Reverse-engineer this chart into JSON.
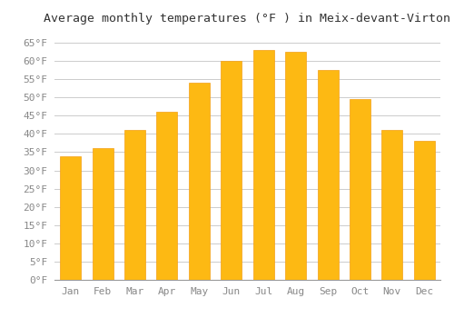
{
  "title": "Average monthly temperatures (°F ) in Meix-devant-Virton",
  "months": [
    "Jan",
    "Feb",
    "Mar",
    "Apr",
    "May",
    "Jun",
    "Jul",
    "Aug",
    "Sep",
    "Oct",
    "Nov",
    "Dec"
  ],
  "values": [
    34,
    36,
    41,
    46,
    54,
    60,
    63,
    62.5,
    57.5,
    49.5,
    41,
    38
  ],
  "bar_color_face": "#FDB913",
  "bar_color_edge": "#F4A016",
  "background_color": "#FFFFFF",
  "grid_color": "#CCCCCC",
  "text_color": "#888888",
  "ylim": [
    0,
    68
  ],
  "yticks": [
    0,
    5,
    10,
    15,
    20,
    25,
    30,
    35,
    40,
    45,
    50,
    55,
    60,
    65
  ],
  "title_fontsize": 9.5,
  "tick_fontsize": 8,
  "bar_width": 0.65
}
